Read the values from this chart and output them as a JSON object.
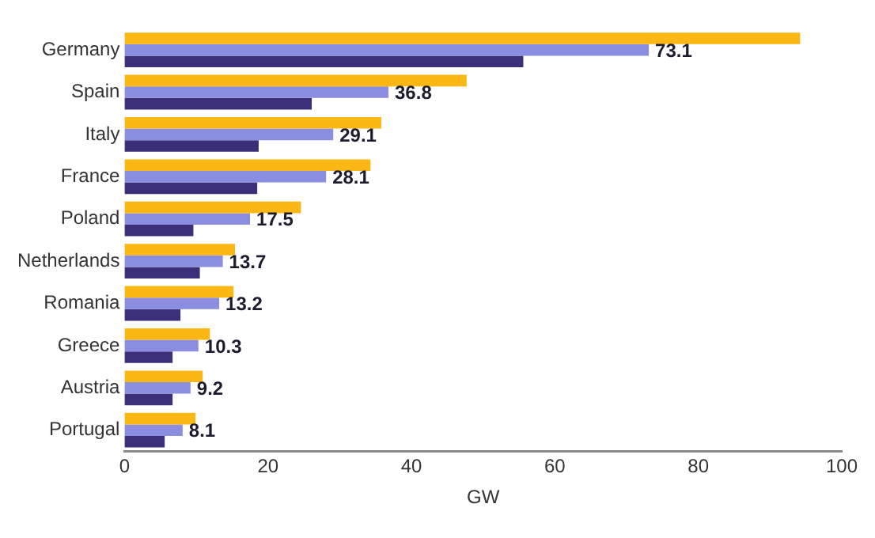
{
  "chart_data": {
    "type": "bar",
    "orientation": "horizontal",
    "xlabel": "GW",
    "categories": [
      "Germany",
      "Spain",
      "Italy",
      "France",
      "Poland",
      "Netherlands",
      "Romania",
      "Greece",
      "Austria",
      "Portugal"
    ],
    "series": [
      {
        "color": "#fbb713",
        "values": [
          94.2,
          47.7,
          35.8,
          34.3,
          24.6,
          15.4,
          15.2,
          11.9,
          10.9,
          9.9
        ]
      },
      {
        "color": "#8b8ee0",
        "values": [
          73.1,
          36.8,
          29.1,
          28.1,
          17.5,
          13.7,
          13.2,
          10.3,
          9.2,
          8.1
        ],
        "value_labels": [
          "73.1",
          "36.8",
          "29.1",
          "28.1",
          "17.5",
          "13.7",
          "13.2",
          "10.3",
          "9.2",
          "8.1"
        ]
      },
      {
        "color": "#3b2f7a",
        "values": [
          55.6,
          26.1,
          18.7,
          18.5,
          9.6,
          10.5,
          7.8,
          6.7,
          6.7,
          5.6
        ]
      }
    ],
    "xlim": [
      0,
      100
    ],
    "xticks": [
      0,
      20,
      40,
      60,
      80,
      100
    ],
    "grid": false,
    "legend": false
  }
}
